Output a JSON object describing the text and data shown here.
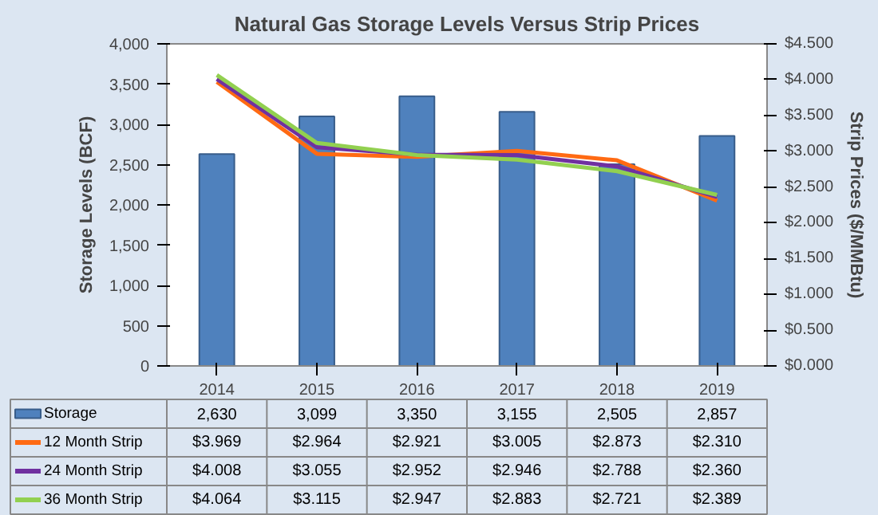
{
  "chart_data": {
    "type": "bar",
    "title": "Natural Gas Storage Levels Versus Strip Prices",
    "ylabel": "Storage Levels (BCF)",
    "y2label": "Strip Prices ($/MMBtu)",
    "categories": [
      "2014",
      "2015",
      "2016",
      "2017",
      "2018",
      "2019"
    ],
    "series": [
      {
        "name": "Storage",
        "color": "#4f81bd",
        "values": [
          2630,
          3099,
          3350,
          3155,
          2505,
          2857
        ],
        "value_labels": [
          "2,630",
          "3,099",
          "3,350",
          "3,155",
          "2,505",
          "2,857"
        ]
      },
      {
        "name": "12 Month Strip",
        "type": "line",
        "axis": "y2",
        "color": "#ff6a13",
        "values": [
          3.969,
          2.964,
          2.921,
          3.005,
          2.873,
          2.31
        ],
        "value_labels": [
          "$3.969",
          "$2.964",
          "$2.921",
          "$3.005",
          "$2.873",
          "$2.310"
        ]
      },
      {
        "name": "24 Month Strip",
        "type": "line",
        "axis": "y2",
        "color": "#7030a0",
        "values": [
          4.008,
          3.055,
          2.952,
          2.946,
          2.788,
          2.36
        ],
        "value_labels": [
          "$4.008",
          "$3.055",
          "$2.952",
          "$2.946",
          "$2.788",
          "$2.360"
        ]
      },
      {
        "name": "36 Month Strip",
        "type": "line",
        "axis": "y2",
        "color": "#92d050",
        "values": [
          4.064,
          3.115,
          2.947,
          2.883,
          2.721,
          2.389
        ],
        "value_labels": [
          "$4.064",
          "$3.115",
          "$2.947",
          "$2.883",
          "$2.721",
          "$2.389"
        ]
      }
    ],
    "ylim": [
      0,
      4000
    ],
    "yticks": [
      0,
      {
        "value": 500,
        "label": "500"
      },
      {
        "value": 1000,
        "label": "1,000"
      },
      {
        "value": 1500,
        "label": "1,500"
      },
      {
        "value": 2000,
        "label": "2,000"
      },
      {
        "value": 2500,
        "label": "2,500"
      },
      {
        "value": 3000,
        "label": "3,000"
      },
      {
        "value": 3500,
        "label": "3,500"
      },
      {
        "value": 4000,
        "label": "4,000"
      }
    ],
    "y2lim": [
      0,
      4.5
    ],
    "y2ticks": [
      {
        "value": 0,
        "label": "$0.000"
      },
      {
        "value": 0.5,
        "label": "$0.500"
      },
      {
        "value": 1,
        "label": "$1.000"
      },
      {
        "value": 1.5,
        "label": "$1.500"
      },
      {
        "value": 2,
        "label": "$2.000"
      },
      {
        "value": 2.5,
        "label": "$2.500"
      },
      {
        "value": 3,
        "label": "$3.000"
      },
      {
        "value": 3.5,
        "label": "$3.500"
      },
      {
        "value": 4,
        "label": "$4.000"
      },
      {
        "value": 4.5,
        "label": "$4.500"
      }
    ],
    "grid": false,
    "legend": "bottom",
    "marker": "none",
    "line_style": "solid"
  }
}
